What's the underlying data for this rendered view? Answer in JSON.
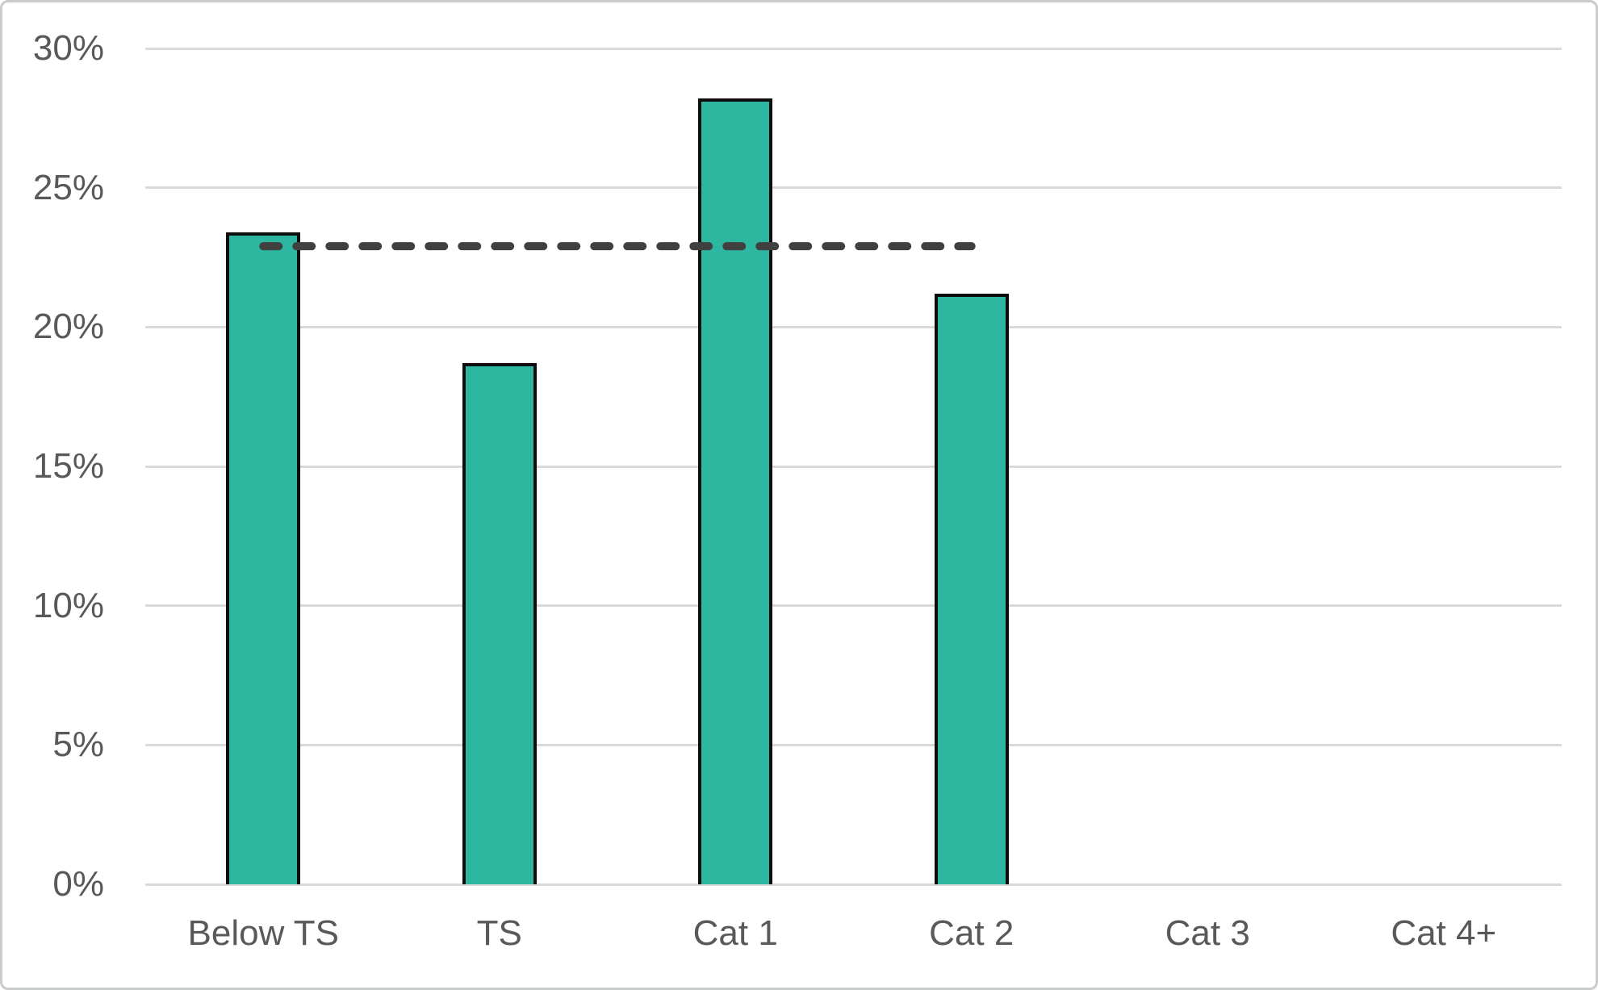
{
  "chart_data": {
    "type": "bar",
    "title": "",
    "xlabel": "",
    "ylabel": "",
    "categories": [
      "Below TS",
      "TS",
      "Cat 1",
      "Cat 2",
      "Cat 3",
      "Cat 4+"
    ],
    "values": [
      23.4,
      18.7,
      28.2,
      21.2,
      0,
      0
    ],
    "series": [
      {
        "name": "bars",
        "values": [
          23.4,
          18.7,
          28.2,
          21.2,
          0,
          0
        ]
      },
      {
        "name": "reference-dashed-line",
        "value": 22.9,
        "spans_category_indices": [
          0,
          3
        ]
      }
    ],
    "ylim": [
      0,
      30
    ],
    "ytick_step": 5,
    "yticks": [
      0,
      5,
      10,
      15,
      20,
      25,
      30
    ],
    "ytick_labels": [
      "0%",
      "5%",
      "10%",
      "15%",
      "20%",
      "25%",
      "30%"
    ],
    "grid": true,
    "legend": "none",
    "colors": {
      "bar_fill": "#2db6a0",
      "bar_border": "#0d0d0d",
      "reference_line": "#404040",
      "gridline": "#d9d9d9",
      "axis_text": "#595959",
      "frame_border": "#c9cccb",
      "background": "#ffffff"
    }
  }
}
